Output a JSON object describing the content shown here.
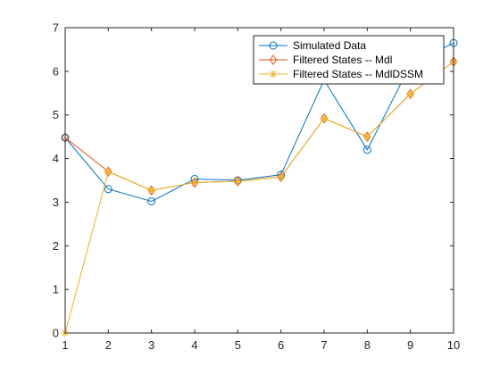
{
  "chart_data": {
    "type": "line",
    "title": "",
    "xlabel": "",
    "ylabel": "",
    "xlim": [
      1,
      10
    ],
    "ylim": [
      0,
      7
    ],
    "x": [
      1,
      2,
      3,
      4,
      5,
      6,
      7,
      8,
      9,
      10
    ],
    "xticks": [
      "1",
      "2",
      "3",
      "4",
      "5",
      "6",
      "7",
      "8",
      "9",
      "10"
    ],
    "yticks": [
      "0",
      "1",
      "2",
      "3",
      "4",
      "5",
      "6",
      "7"
    ],
    "grid": false,
    "legend_position": "top-right",
    "series": [
      {
        "name": "Simulated Data",
        "color": "#0072bd",
        "marker": "circle",
        "values": [
          4.48,
          3.3,
          3.02,
          3.53,
          3.5,
          3.63,
          5.8,
          4.2,
          6.15,
          6.65
        ]
      },
      {
        "name": "Filtered States -- Mdl",
        "color": "#d95319",
        "marker": "diamond",
        "values": [
          4.48,
          3.7,
          3.27,
          3.45,
          3.48,
          3.58,
          4.92,
          4.5,
          5.48,
          6.22
        ]
      },
      {
        "name": "Filtered States -- MdlDSSM",
        "color": "#edb120",
        "marker": "star",
        "values": [
          0,
          3.7,
          3.27,
          3.45,
          3.48,
          3.58,
          4.92,
          4.5,
          5.48,
          6.22
        ]
      }
    ]
  }
}
